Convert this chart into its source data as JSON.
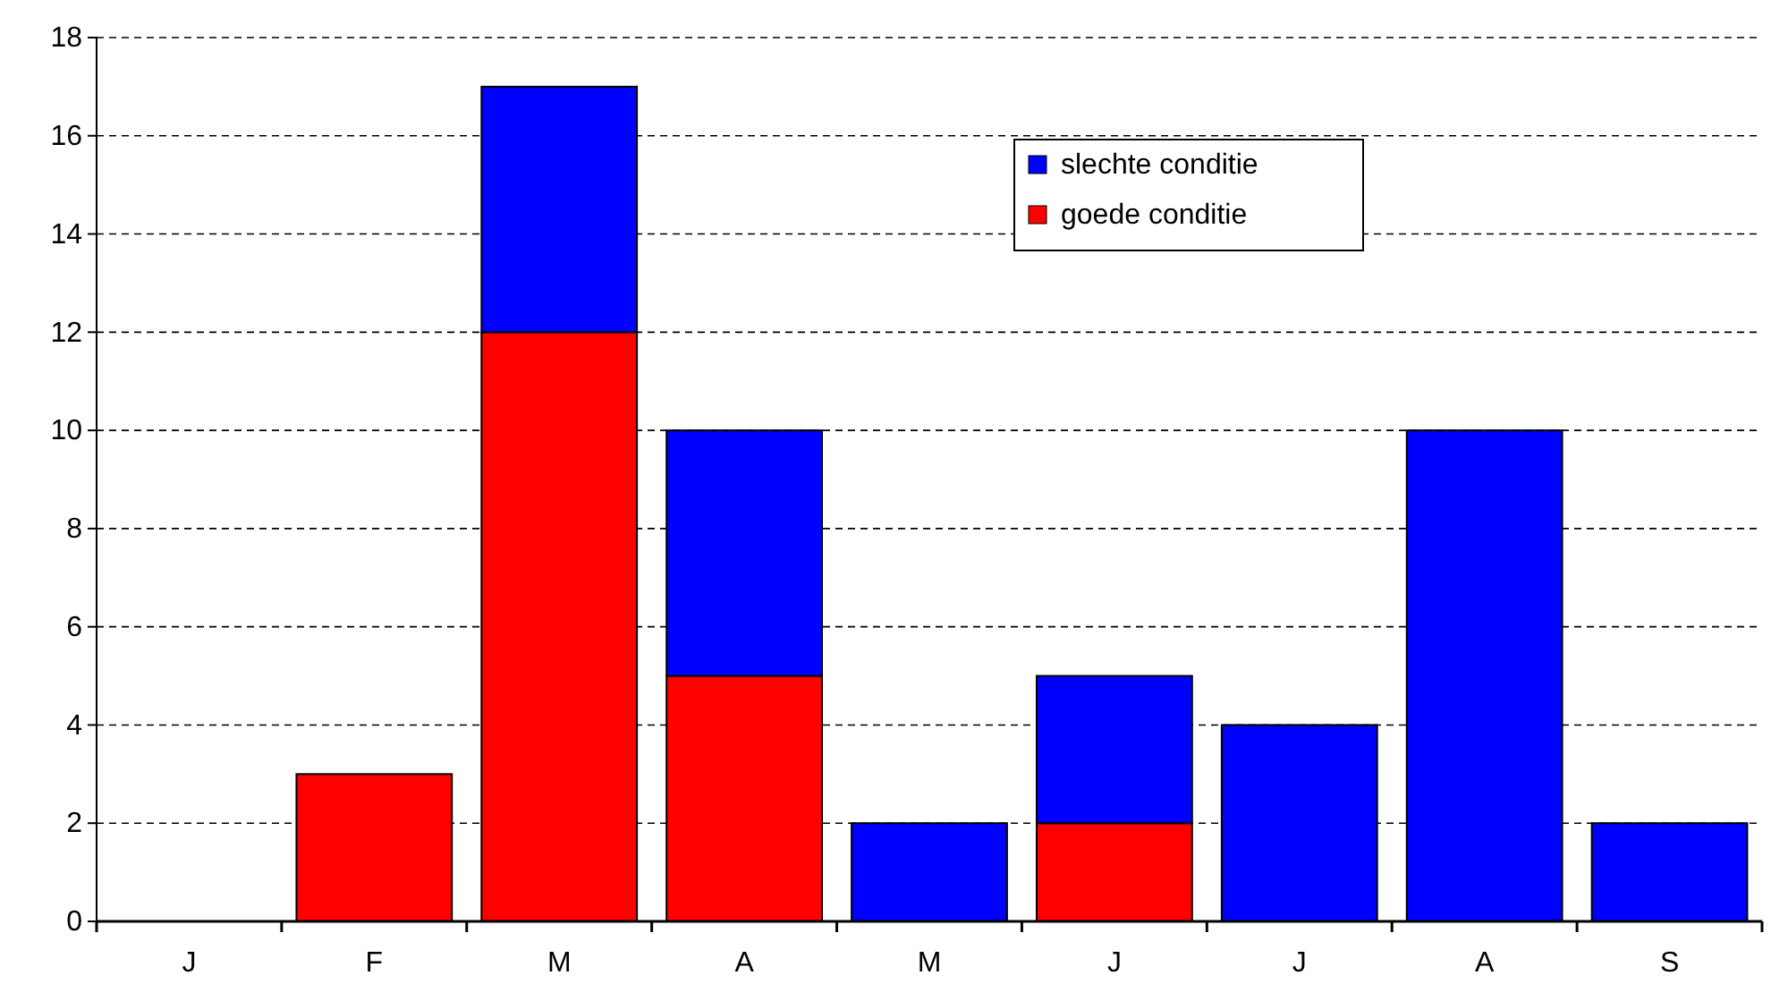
{
  "chart_data": {
    "type": "bar",
    "stacked": true,
    "categories": [
      "J",
      "F",
      "M",
      "A",
      "M",
      "J",
      "J",
      "A",
      "S"
    ],
    "series": [
      {
        "name": "goede conditie",
        "color": "#ff0000",
        "values": [
          0,
          3,
          12,
          5,
          0,
          2,
          0,
          0,
          0
        ]
      },
      {
        "name": "slechte conditie",
        "color": "#0000ff",
        "values": [
          0,
          0,
          5,
          5,
          2,
          3,
          4,
          10,
          2
        ]
      }
    ],
    "ylim": [
      0,
      18
    ],
    "yticks": [
      0,
      2,
      4,
      6,
      8,
      10,
      12,
      14,
      16,
      18
    ],
    "grid": "y",
    "legend": "top right"
  }
}
